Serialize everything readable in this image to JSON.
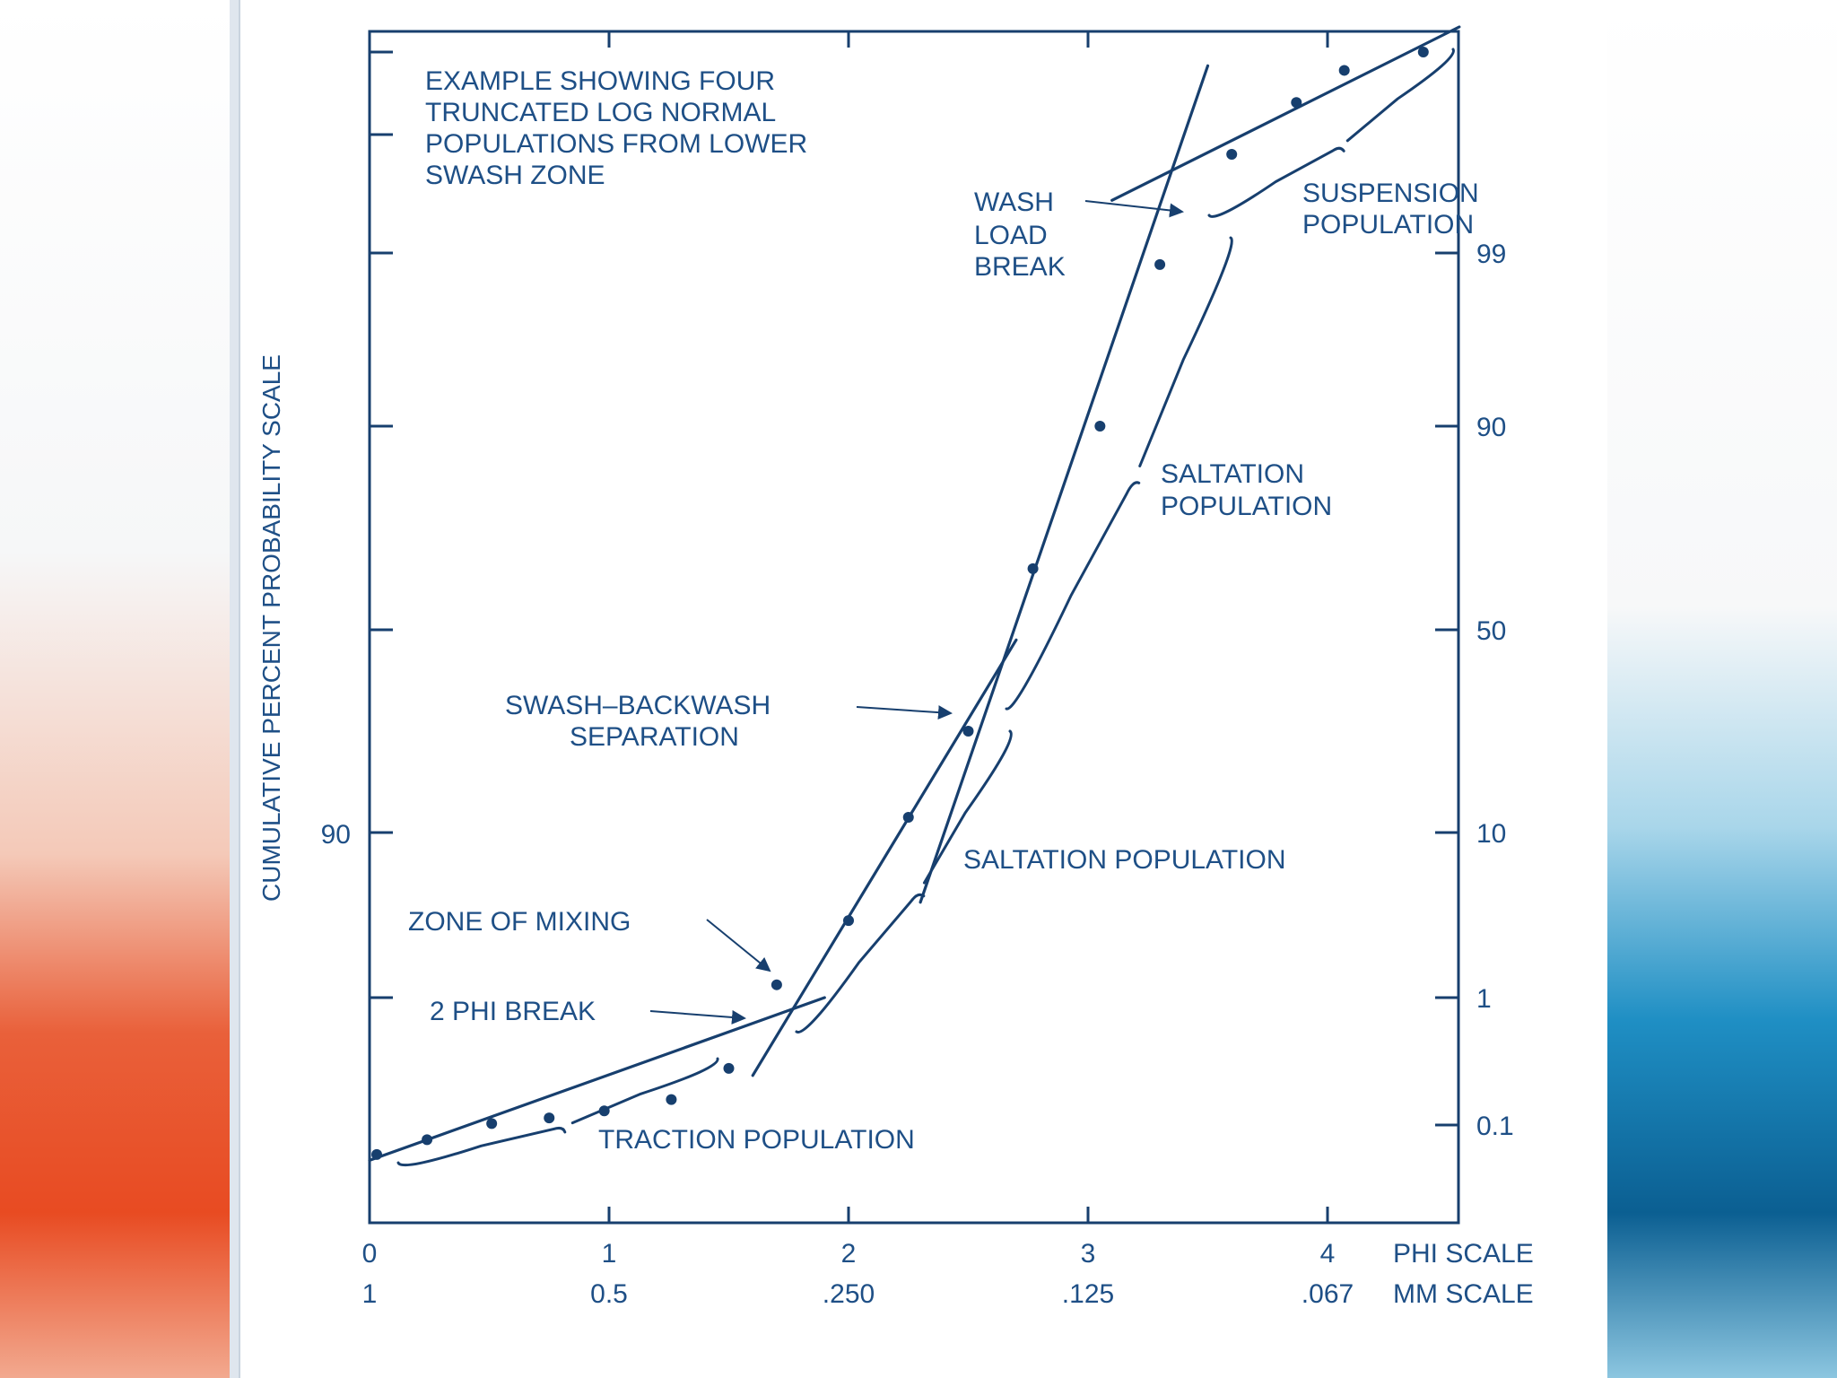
{
  "background": {
    "left_accent": "#e84b22",
    "right_accent": "#0b6fa8"
  },
  "colors": {
    "ink": "#173f6e",
    "label": "#1e4f86"
  },
  "chart_data": {
    "type": "scatter",
    "title": "EXAMPLE SHOWING FOUR TRUNCATED LOG NORMAL POPULATIONS FROM LOWER SWASH ZONE",
    "title_lines": [
      "EXAMPLE SHOWING FOUR",
      "TRUNCATED LOG NORMAL",
      "POPULATIONS FROM LOWER",
      "SWASH ZONE"
    ],
    "ylabel": "CUMULATIVE PERCENT PROBABILITY SCALE",
    "x_scale_labels": [
      "PHI SCALE",
      "MM SCALE"
    ],
    "xlim": [
      0,
      4.55
    ],
    "x_ticks": [
      0,
      1,
      2,
      3,
      4
    ],
    "x_tick_labels_phi": [
      "0",
      "1",
      "2",
      "3",
      "4"
    ],
    "x_tick_labels_mm": [
      "1",
      "0.5",
      ".250",
      ".125",
      ".067"
    ],
    "y_scale": "probability",
    "y_ticks_right": [
      0.1,
      1,
      10,
      50,
      90,
      99
    ],
    "y_tick_labels_right": [
      "0.1",
      "1",
      "10",
      "50",
      "90",
      "99"
    ],
    "y_ticks_left": [
      90
    ],
    "y_tick_labels_left": [
      "90"
    ],
    "series": [
      {
        "points": [
          [
            0.03,
            0.05
          ],
          [
            0.24,
            0.075
          ],
          [
            0.51,
            0.11
          ],
          [
            0.75,
            0.15
          ],
          [
            0.98,
            0.2
          ],
          [
            1.26,
            0.28
          ],
          [
            1.5,
            0.5
          ],
          [
            1.7,
            1.7
          ],
          [
            2.0,
            5.2
          ],
          [
            2.25,
            13
          ],
          [
            2.5,
            30
          ],
          [
            2.77,
            62
          ],
          [
            3.05,
            90
          ],
          [
            3.3,
            98.4
          ],
          [
            3.6,
            99.75
          ],
          [
            3.87,
            99.935
          ],
          [
            4.07,
            99.97
          ],
          [
            4.4,
            99.99
          ]
        ]
      }
    ],
    "fit_lines": [
      {
        "from": [
          0.0,
          0.04
        ],
        "to": [
          1.9,
          1.0
        ]
      },
      {
        "from": [
          1.6,
          0.45
        ],
        "to": [
          2.7,
          48
        ]
      },
      {
        "from": [
          2.3,
          6.2
        ],
        "to": [
          3.5,
          99.975
        ]
      },
      {
        "from": [
          3.1,
          99.4
        ],
        "to": [
          4.55,
          99.999
        ]
      }
    ],
    "annotations": [
      {
        "key": "traction",
        "text": "TRACTION POPULATION"
      },
      {
        "key": "saltation1",
        "text": "SALTATION POPULATION"
      },
      {
        "key": "saltation2",
        "lines": [
          "SALTATION",
          "POPULATION"
        ]
      },
      {
        "key": "suspension",
        "lines": [
          "SUSPENSION",
          "POPULATION"
        ]
      },
      {
        "key": "wash",
        "lines": [
          "WASH",
          "LOAD",
          "BREAK"
        ]
      },
      {
        "key": "swash",
        "lines": [
          "SWASH–BACKWASH",
          "SEPARATION"
        ]
      },
      {
        "key": "mixing",
        "text": "ZONE OF MIXING"
      },
      {
        "key": "phi2",
        "text": "2 PHI BREAK"
      }
    ]
  }
}
